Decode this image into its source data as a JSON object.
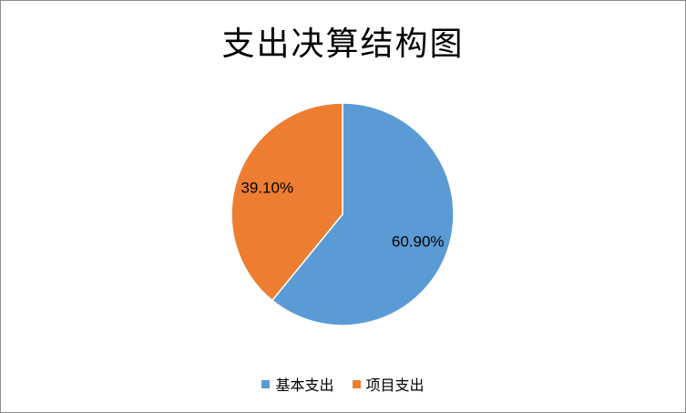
{
  "chart_data": {
    "type": "pie",
    "title": "支出决算结构图",
    "categories": [
      "基本支出",
      "项目支出"
    ],
    "values": [
      60.9,
      39.1
    ],
    "value_labels": [
      "60.90%",
      "39.10%"
    ],
    "colors": [
      "#5b9bd5",
      "#ed7d31"
    ],
    "legend_position": "bottom",
    "start_angle_deg": 0,
    "direction": "clockwise"
  }
}
